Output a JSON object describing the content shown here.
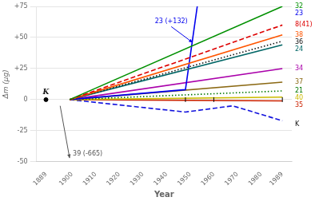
{
  "chart_data": {
    "type": "line",
    "x_label": "Year",
    "y_label": "Δm (μg)",
    "xlim": [
      1885,
      1993
    ],
    "ylim": [
      -50,
      75
    ],
    "xticks": [
      1889,
      1900,
      1910,
      1920,
      1930,
      1940,
      1950,
      1960,
      1970,
      1980,
      1989
    ],
    "yticks": [
      {
        "value": -50,
        "label": "-50"
      },
      {
        "value": -25,
        "label": "-25"
      },
      0,
      {
        "value": 25,
        "label": "+25"
      },
      {
        "value": 50,
        "label": "+50"
      },
      {
        "value": 75,
        "label": "+75"
      }
    ],
    "grid": "y",
    "series": [
      {
        "name": "32",
        "color": "#009000",
        "line_style": "solid",
        "x": [
          1899,
          1989
        ],
        "values": [
          0,
          75
        ]
      },
      {
        "name": "8(41)",
        "color": "#dd0000",
        "line_style": "dashed",
        "x": [
          1899,
          1989
        ],
        "values": [
          0,
          60
        ]
      },
      {
        "name": "38",
        "color": "#ff5500",
        "line_style": "solid",
        "x": [
          1899,
          1989
        ],
        "values": [
          0,
          52
        ]
      },
      {
        "name": "36",
        "color": "#111111",
        "line_style": "dotted",
        "x": [
          1899,
          1989
        ],
        "values": [
          0,
          47
        ]
      },
      {
        "name": "24",
        "color": "#006666",
        "line_style": "solid",
        "x": [
          1899,
          1989
        ],
        "values": [
          0,
          44
        ]
      },
      {
        "name": "23",
        "color": "#0000ee",
        "line_style": "solid",
        "x": [
          1899,
          1948,
          1953
        ],
        "values": [
          0,
          8,
          75
        ],
        "label_y": 72
      },
      {
        "name": "34",
        "color": "#aa00aa",
        "line_style": "solid",
        "x": [
          1899,
          1989
        ],
        "values": [
          0,
          25
        ]
      },
      {
        "name": "37",
        "color": "#8B6914",
        "line_style": "solid",
        "x": [
          1899,
          1989
        ],
        "values": [
          0,
          14
        ]
      },
      {
        "name": "21",
        "color": "#007700",
        "line_style": "dotted",
        "x": [
          1899,
          1989
        ],
        "values": [
          0,
          7
        ]
      },
      {
        "name": "40",
        "color": "#ccbb00",
        "line_style": "solid",
        "x": [
          1899,
          1989
        ],
        "values": [
          0,
          2
        ]
      },
      {
        "name": "35",
        "color": "#cc2200",
        "line_style": "solid",
        "x": [
          1899,
          1989
        ],
        "values": [
          0,
          -1
        ]
      },
      {
        "name": "K",
        "color": "#1111dd",
        "line_style": "dashed",
        "x": [
          1899,
          1948,
          1968,
          1989
        ],
        "values": [
          0,
          -10,
          -5,
          -17
        ],
        "label_y": -20,
        "label_color": "#111111"
      }
    ],
    "points": [
      {
        "x": 1889,
        "y": 0,
        "color": "#000000"
      }
    ],
    "tick_marks": {
      "x": [
        1948,
        1960,
        1989
      ],
      "color": "#000000"
    },
    "annotations": [
      {
        "text": "K",
        "x": 1889,
        "y": 2,
        "color": "#111111"
      },
      {
        "text": "23 (+132)",
        "x": 1942,
        "y": 60,
        "arrow_to": [
          1951,
          46
        ],
        "color": "#0000ee"
      },
      {
        "text": "39 (-665)",
        "x": 1899,
        "y": -46,
        "arrow_from": [
          1895,
          -5
        ],
        "arrow_to": [
          1899,
          -47
        ],
        "color": "#555555"
      }
    ]
  }
}
